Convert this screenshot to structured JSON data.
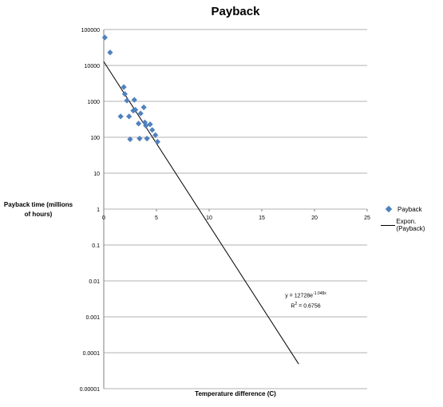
{
  "chart_data": {
    "type": "scatter",
    "title": "Payback",
    "xlabel": "Temperature difference (C)",
    "ylabel": "Payback time (millions of hours)",
    "xlim": [
      0,
      25
    ],
    "ylim": [
      1e-05,
      100000
    ],
    "y_scale": "log",
    "x_ticks": [
      "0",
      "5",
      "10",
      "15",
      "20",
      "25"
    ],
    "y_ticks": [
      "100000",
      "10000",
      "1000",
      "100",
      "10",
      "1",
      "0.1",
      "0.01",
      "0.001",
      "0.0001",
      "0.00001"
    ],
    "grid": true,
    "legend_position": "right",
    "series": [
      {
        "name": "Payback",
        "kind": "points",
        "color": "#4f81bd",
        "points": [
          {
            "x": 0.1,
            "y": 60000
          },
          {
            "x": 0.6,
            "y": 23000
          },
          {
            "x": 1.6,
            "y": 380
          },
          {
            "x": 1.9,
            "y": 2500
          },
          {
            "x": 2.0,
            "y": 1600
          },
          {
            "x": 2.2,
            "y": 1050
          },
          {
            "x": 2.4,
            "y": 380
          },
          {
            "x": 2.5,
            "y": 88
          },
          {
            "x": 2.8,
            "y": 550
          },
          {
            "x": 2.9,
            "y": 1100
          },
          {
            "x": 3.0,
            "y": 580
          },
          {
            "x": 3.3,
            "y": 240
          },
          {
            "x": 3.4,
            "y": 92
          },
          {
            "x": 3.5,
            "y": 460
          },
          {
            "x": 3.8,
            "y": 680
          },
          {
            "x": 3.9,
            "y": 260
          },
          {
            "x": 4.0,
            "y": 210
          },
          {
            "x": 4.1,
            "y": 92
          },
          {
            "x": 4.4,
            "y": 230
          },
          {
            "x": 4.6,
            "y": 160
          },
          {
            "x": 4.9,
            "y": 115
          },
          {
            "x": 5.1,
            "y": 75
          }
        ]
      },
      {
        "name": "Expon. (Payback)",
        "kind": "trendline",
        "color": "#000000",
        "a": 12728,
        "b": -1.048,
        "x_range": [
          0,
          18.5
        ]
      }
    ],
    "annotations": {
      "equation": "y = 12728e",
      "equation_exp": "-1.048x",
      "r2_label": "R",
      "r2_exp": "2",
      "r2_value": " = 0.6756"
    }
  }
}
